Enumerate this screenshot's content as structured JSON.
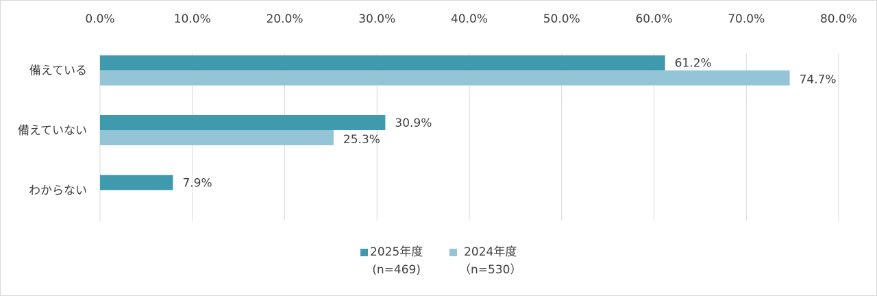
{
  "chart_data": {
    "type": "bar",
    "orientation": "horizontal",
    "categories": [
      "備えている",
      "備えていない",
      "わからない"
    ],
    "series": [
      {
        "name": "2025年度\n(n=469)",
        "color": "#3f9aad",
        "values": [
          61.2,
          30.9,
          7.9
        ],
        "value_labels": [
          "61.2%",
          "30.9%",
          "7.9%"
        ]
      },
      {
        "name": "2024年度\n（n=530）",
        "color": "#93c5d6",
        "values": [
          74.7,
          25.3,
          null
        ],
        "value_labels": [
          "74.7%",
          "25.3%",
          null
        ]
      }
    ],
    "xlim": [
      0,
      80
    ],
    "xticks": [
      {
        "value": 0,
        "label": "0.0%"
      },
      {
        "value": 10,
        "label": "10.0%"
      },
      {
        "value": 20,
        "label": "20.0%"
      },
      {
        "value": 30,
        "label": "30.0%"
      },
      {
        "value": 40,
        "label": "40.0%"
      },
      {
        "value": 50,
        "label": "50.0%"
      },
      {
        "value": 60,
        "label": "60.0%"
      },
      {
        "value": 70,
        "label": "70.0%"
      },
      {
        "value": 80,
        "label": "80.0%"
      }
    ],
    "grid": true,
    "legend": "bottom"
  }
}
